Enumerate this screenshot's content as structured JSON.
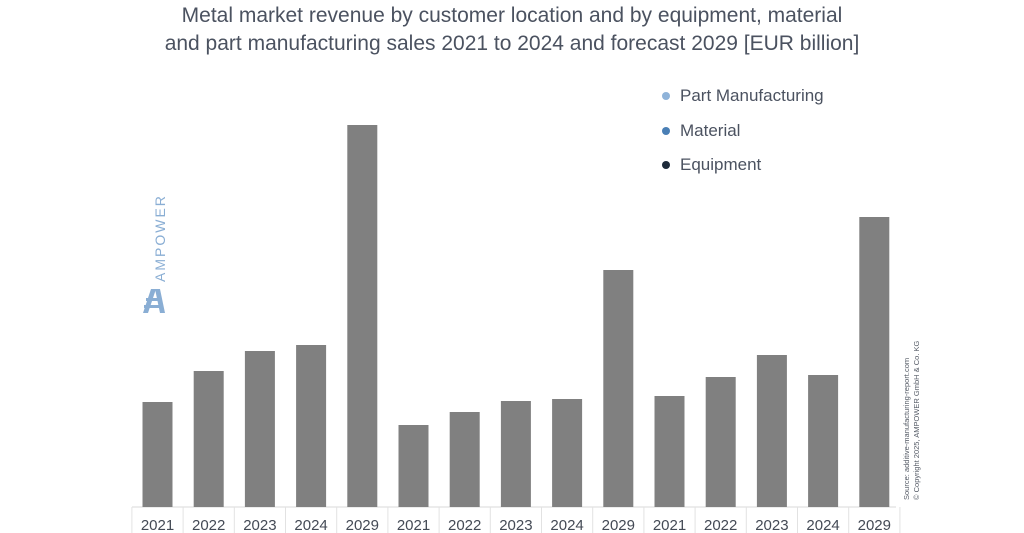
{
  "title_lines": [
    "Metal market revenue by customer location and by equipment, material",
    "and part manufacturing sales 2021 to 2024 and forecast 2029 [EUR billion]"
  ],
  "legend": [
    {
      "label": "Part Manufacturing",
      "color": "#8fb3d9"
    },
    {
      "label": "Material",
      "color": "#4a7fb5"
    },
    {
      "label": "Equipment",
      "color": "#1d2a3a"
    }
  ],
  "watermark": {
    "text": "AMPOWER",
    "color": "#8aaed4"
  },
  "source": {
    "line1": "Source: additive-manufacturing-report.com",
    "line2": "© Copyright 2025, AMPOWER GmbH & Co. KG"
  },
  "chart_data": {
    "type": "bar",
    "categories": [
      "2021",
      "2022",
      "2023",
      "2024",
      "2029",
      "2021",
      "2022",
      "2023",
      "2024",
      "2029",
      "2021",
      "2022",
      "2023",
      "2024",
      "2029"
    ],
    "values": [
      105,
      136,
      156,
      162,
      382,
      82,
      95,
      106,
      108,
      237,
      111,
      130,
      152,
      132,
      290
    ],
    "bar_color": "#808080",
    "title": "Metal market revenue by customer location and by equipment, material and part manufacturing sales 2021 to 2024 and forecast 2029 [EUR billion]",
    "legend_entries": [
      "Part Manufacturing",
      "Material",
      "Equipment"
    ],
    "ylim": [
      0,
      400
    ],
    "grid": false,
    "legend_position": "top-right"
  }
}
